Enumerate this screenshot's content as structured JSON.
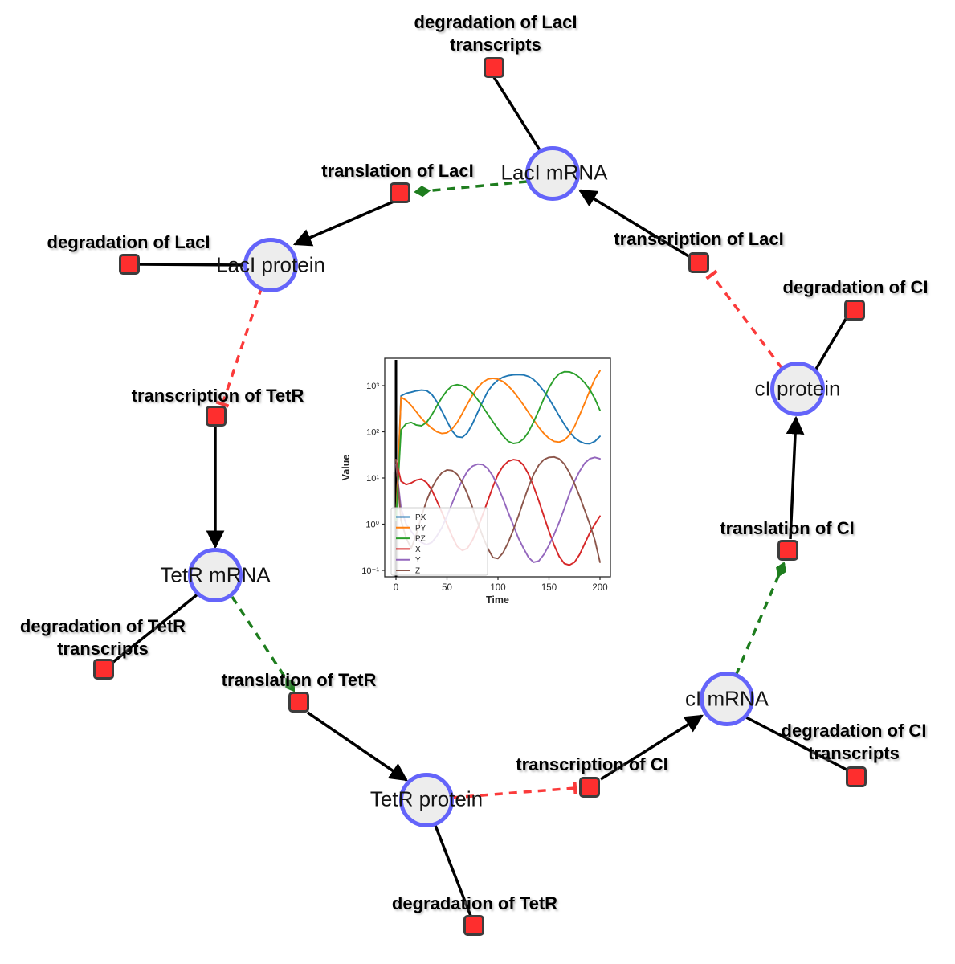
{
  "diagram": {
    "species": [
      {
        "id": "laci-mrna",
        "label": "LacI mRNA"
      },
      {
        "id": "laci-protein",
        "label": "LacI protein"
      },
      {
        "id": "tetr-mrna",
        "label": "TetR mRNA"
      },
      {
        "id": "tetr-protein",
        "label": "TetR protein"
      },
      {
        "id": "ci-mrna",
        "label": "cI mRNA"
      },
      {
        "id": "ci-protein",
        "label": "cI protein"
      }
    ],
    "reactions": [
      {
        "id": "deg-laci-transcripts",
        "label": "degradation of LacI transcripts"
      },
      {
        "id": "translation-laci",
        "label": "translation of LacI"
      },
      {
        "id": "transcription-laci",
        "label": "transcription of LacI"
      },
      {
        "id": "deg-laci",
        "label": "degradation of LacI"
      },
      {
        "id": "deg-ci",
        "label": "degradation of CI"
      },
      {
        "id": "transcription-tetr",
        "label": "transcription of TetR"
      },
      {
        "id": "deg-tetr-transcripts",
        "label": "degradation of TetR transcripts"
      },
      {
        "id": "translation-tetr",
        "label": "translation of TetR"
      },
      {
        "id": "translation-ci",
        "label": "translation of CI"
      },
      {
        "id": "deg-tetr",
        "label": "degradation of TetR"
      },
      {
        "id": "transcription-ci",
        "label": "transcription of CI"
      },
      {
        "id": "deg-ci-transcripts",
        "label": "degradation of CI transcripts"
      }
    ],
    "edges": [
      {
        "from": "LacI mRNA",
        "to": "degradation of LacI transcripts",
        "type": "consumption"
      },
      {
        "from": "LacI mRNA",
        "to": "translation of LacI",
        "type": "modifier"
      },
      {
        "from": "transcription of LacI",
        "to": "LacI mRNA",
        "type": "production"
      },
      {
        "from": "translation of LacI",
        "to": "LacI protein",
        "type": "production"
      },
      {
        "from": "LacI protein",
        "to": "degradation of LacI",
        "type": "consumption"
      },
      {
        "from": "LacI protein",
        "to": "transcription of TetR",
        "type": "inhibition"
      },
      {
        "from": "transcription of TetR",
        "to": "TetR mRNA",
        "type": "production"
      },
      {
        "from": "TetR mRNA",
        "to": "degradation of TetR transcripts",
        "type": "consumption"
      },
      {
        "from": "TetR mRNA",
        "to": "translation of TetR",
        "type": "modifier"
      },
      {
        "from": "translation of TetR",
        "to": "TetR protein",
        "type": "production"
      },
      {
        "from": "TetR protein",
        "to": "degradation of TetR",
        "type": "consumption"
      },
      {
        "from": "TetR protein",
        "to": "transcription of CI",
        "type": "inhibition"
      },
      {
        "from": "transcription of CI",
        "to": "cI mRNA",
        "type": "production"
      },
      {
        "from": "cI mRNA",
        "to": "degradation of CI transcripts",
        "type": "consumption"
      },
      {
        "from": "cI mRNA",
        "to": "translation of CI",
        "type": "modifier"
      },
      {
        "from": "translation of CI",
        "to": "cI protein",
        "type": "production"
      },
      {
        "from": "cI protein",
        "to": "degradation of CI",
        "type": "consumption"
      },
      {
        "from": "cI protein",
        "to": "transcription of LacI",
        "type": "inhibition"
      }
    ],
    "colors": {
      "species_fill": "#ededed",
      "species_border": "#6464fa",
      "reaction_fill": "#fe2e2e",
      "reaction_border": "#3d3d3d",
      "production_edge": "#000000",
      "modifier_edge": "#1e7d1e",
      "inhibition_edge": "#fb3b3b"
    }
  },
  "chart_data": {
    "type": "line",
    "title": "",
    "xlabel": "Time",
    "ylabel": "Value",
    "y_scale": "log",
    "x_ticks": [
      0,
      50,
      100,
      150,
      200
    ],
    "y_tick_labels": [
      "10³",
      "10²",
      "10¹",
      "10⁰",
      "10⁻¹"
    ],
    "y_tick_values": [
      1000,
      100,
      10,
      1,
      0.1
    ],
    "xlim": [
      -11,
      210
    ],
    "ylim": [
      0.07,
      3900
    ],
    "legend_position": "lower left",
    "x_step": 5,
    "series": [
      {
        "name": "PX",
        "color": "#1f77b4",
        "values": [
          1.2,
          600,
          680,
          720,
          770,
          800,
          780,
          650,
          450,
          280,
          170,
          105,
          78,
          76,
          95,
          150,
          260,
          450,
          750,
          1050,
          1320,
          1520,
          1650,
          1710,
          1730,
          1700,
          1580,
          1350,
          1050,
          760,
          520,
          340,
          220,
          145,
          100,
          75,
          62,
          56,
          55,
          62,
          80
        ]
      },
      {
        "name": "PY",
        "color": "#ff7f0e",
        "values": [
          1.2,
          560,
          480,
          370,
          270,
          195,
          150,
          120,
          100,
          92,
          95,
          115,
          160,
          250,
          400,
          620,
          900,
          1180,
          1380,
          1440,
          1380,
          1220,
          990,
          750,
          540,
          380,
          260,
          180,
          125,
          92,
          72,
          62,
          60,
          66,
          85,
          130,
          230,
          420,
          780,
          1400,
          2100
        ]
      },
      {
        "name": "PZ",
        "color": "#2ca02c",
        "values": [
          1.2,
          110,
          150,
          160,
          140,
          135,
          160,
          230,
          360,
          550,
          780,
          990,
          1050,
          1000,
          870,
          690,
          500,
          350,
          240,
          165,
          115,
          82,
          62,
          56,
          58,
          70,
          100,
          165,
          290,
          520,
          900,
          1380,
          1800,
          2000,
          1980,
          1800,
          1500,
          1150,
          820,
          520,
          290
        ]
      },
      {
        "name": "X",
        "color": "#d62728",
        "values": [
          25,
          8.5,
          7.2,
          7.8,
          9,
          9.5,
          8,
          5.5,
          3.2,
          1.8,
          1.0,
          0.55,
          0.33,
          0.27,
          0.3,
          0.45,
          0.8,
          1.6,
          3.2,
          6.5,
          12,
          18,
          23,
          25,
          24,
          19,
          12,
          6.5,
          3.2,
          1.5,
          0.7,
          0.35,
          0.2,
          0.14,
          0.13,
          0.15,
          0.22,
          0.38,
          0.65,
          1.0,
          1.5
        ]
      },
      {
        "name": "Y",
        "color": "#9467bd",
        "values": [
          20,
          2.2,
          1.0,
          0.7,
          0.5,
          0.4,
          0.36,
          0.4,
          0.55,
          0.85,
          1.5,
          2.8,
          5.2,
          9,
          14,
          18,
          20,
          19.5,
          16,
          11,
          6.5,
          3.5,
          1.8,
          0.95,
          0.5,
          0.3,
          0.19,
          0.15,
          0.16,
          0.22,
          0.35,
          0.6,
          1.1,
          2.2,
          4.5,
          8.5,
          14,
          21,
          26,
          28,
          26
        ]
      },
      {
        "name": "Z",
        "color": "#8c564b",
        "values": [
          25,
          1.2,
          0.5,
          0.3,
          0.6,
          1.5,
          3.2,
          6,
          9.5,
          13,
          15,
          14.5,
          12,
          8,
          4.5,
          2.3,
          1.1,
          0.55,
          0.3,
          0.19,
          0.18,
          0.24,
          0.4,
          0.75,
          1.5,
          3.2,
          6.5,
          12,
          19,
          25,
          28,
          28.5,
          26,
          20,
          13,
          7.5,
          4,
          2,
          1.0,
          0.45,
          0.15
        ]
      }
    ]
  }
}
